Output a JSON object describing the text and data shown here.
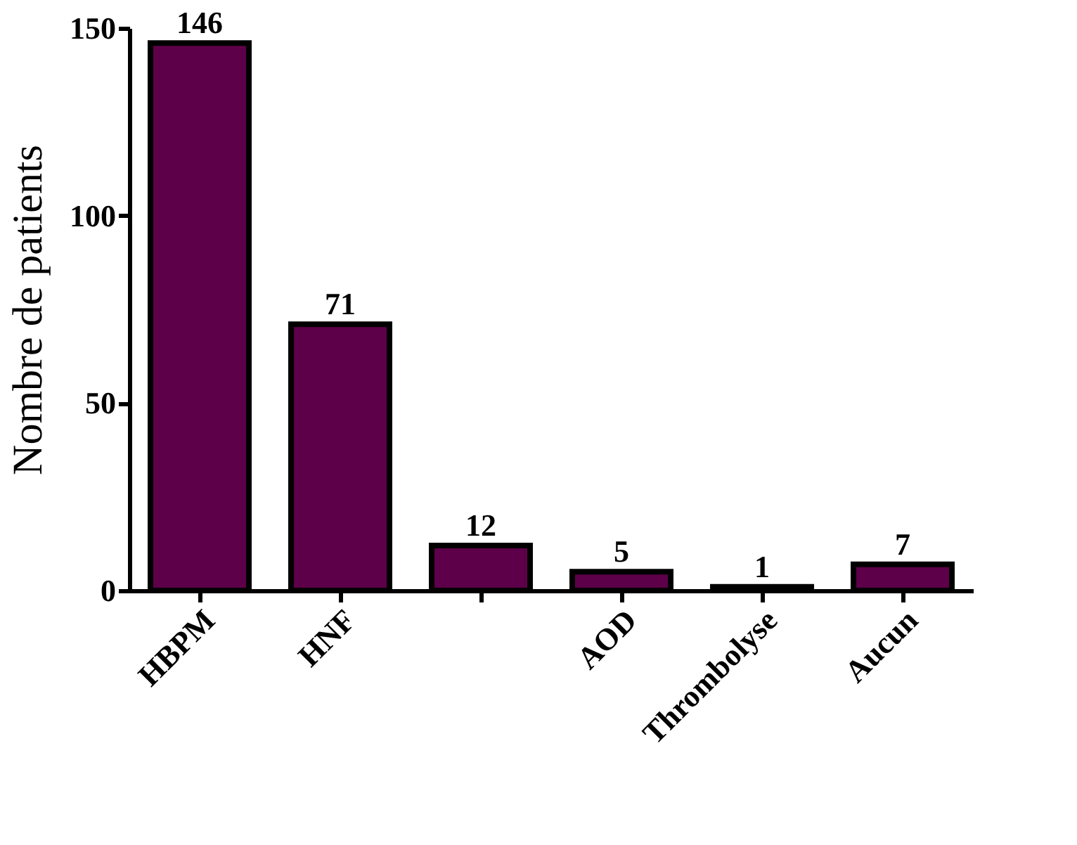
{
  "chart_data": {
    "type": "bar",
    "ylabel": "Nombre de patients",
    "categories": [
      "HBPM",
      "HNF",
      null,
      "AOD",
      "Thrombolyse",
      "Aucun"
    ],
    "values": [
      146,
      71,
      12,
      5,
      1,
      7
    ],
    "color": "#5e0049",
    "ylim": [
      0,
      150
    ],
    "yticks": [
      0,
      50,
      100,
      150
    ],
    "data_labels": true,
    "grid": false
  }
}
